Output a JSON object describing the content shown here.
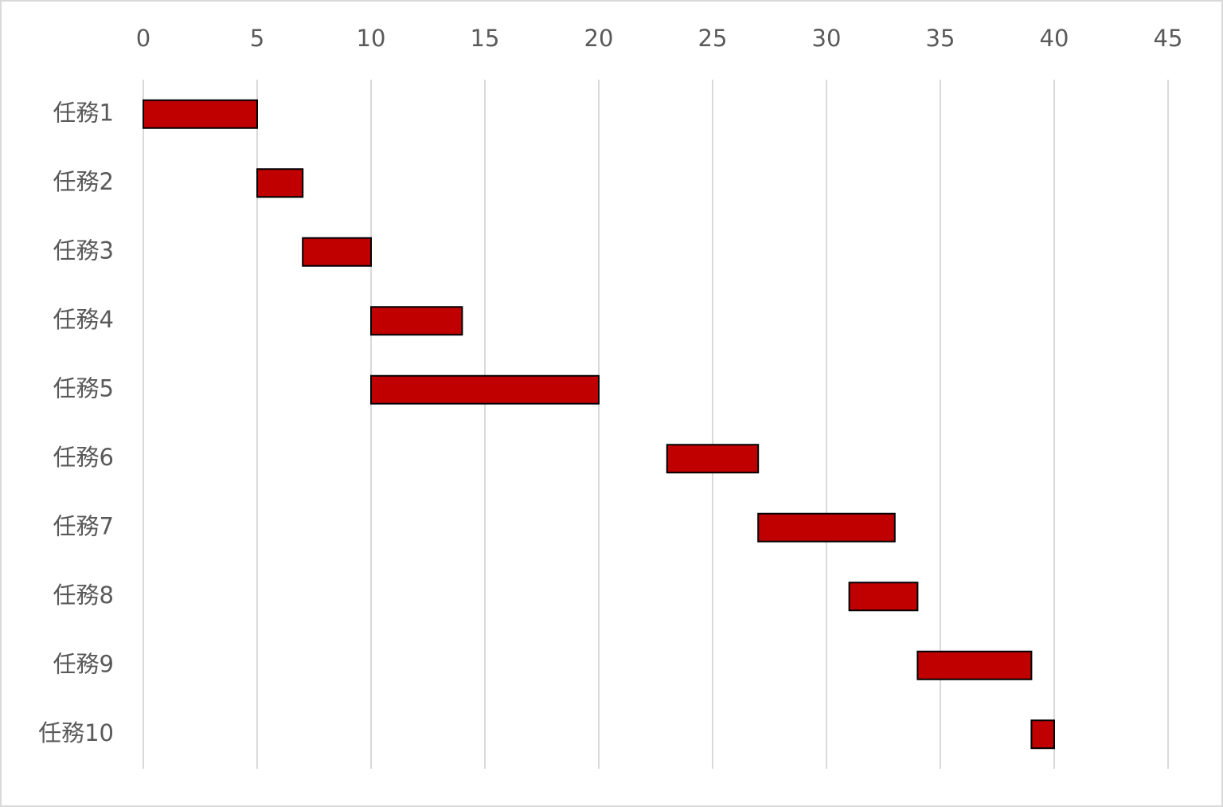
{
  "chart_data": {
    "type": "gantt",
    "categories": [
      "任務1",
      "任務2",
      "任務3",
      "任務4",
      "任務5",
      "任務6",
      "任務7",
      "任務8",
      "任務9",
      "任務10"
    ],
    "starts": [
      0,
      5,
      7,
      10,
      10,
      23,
      27,
      31,
      34,
      39
    ],
    "durations": [
      5,
      2,
      3,
      4,
      10,
      4,
      6,
      3,
      5,
      1
    ],
    "color": "#c00000",
    "xlim": [
      0,
      45
    ],
    "xticks": [
      0,
      5,
      10,
      15,
      20,
      25,
      30,
      35,
      40,
      45
    ],
    "grid": true
  }
}
